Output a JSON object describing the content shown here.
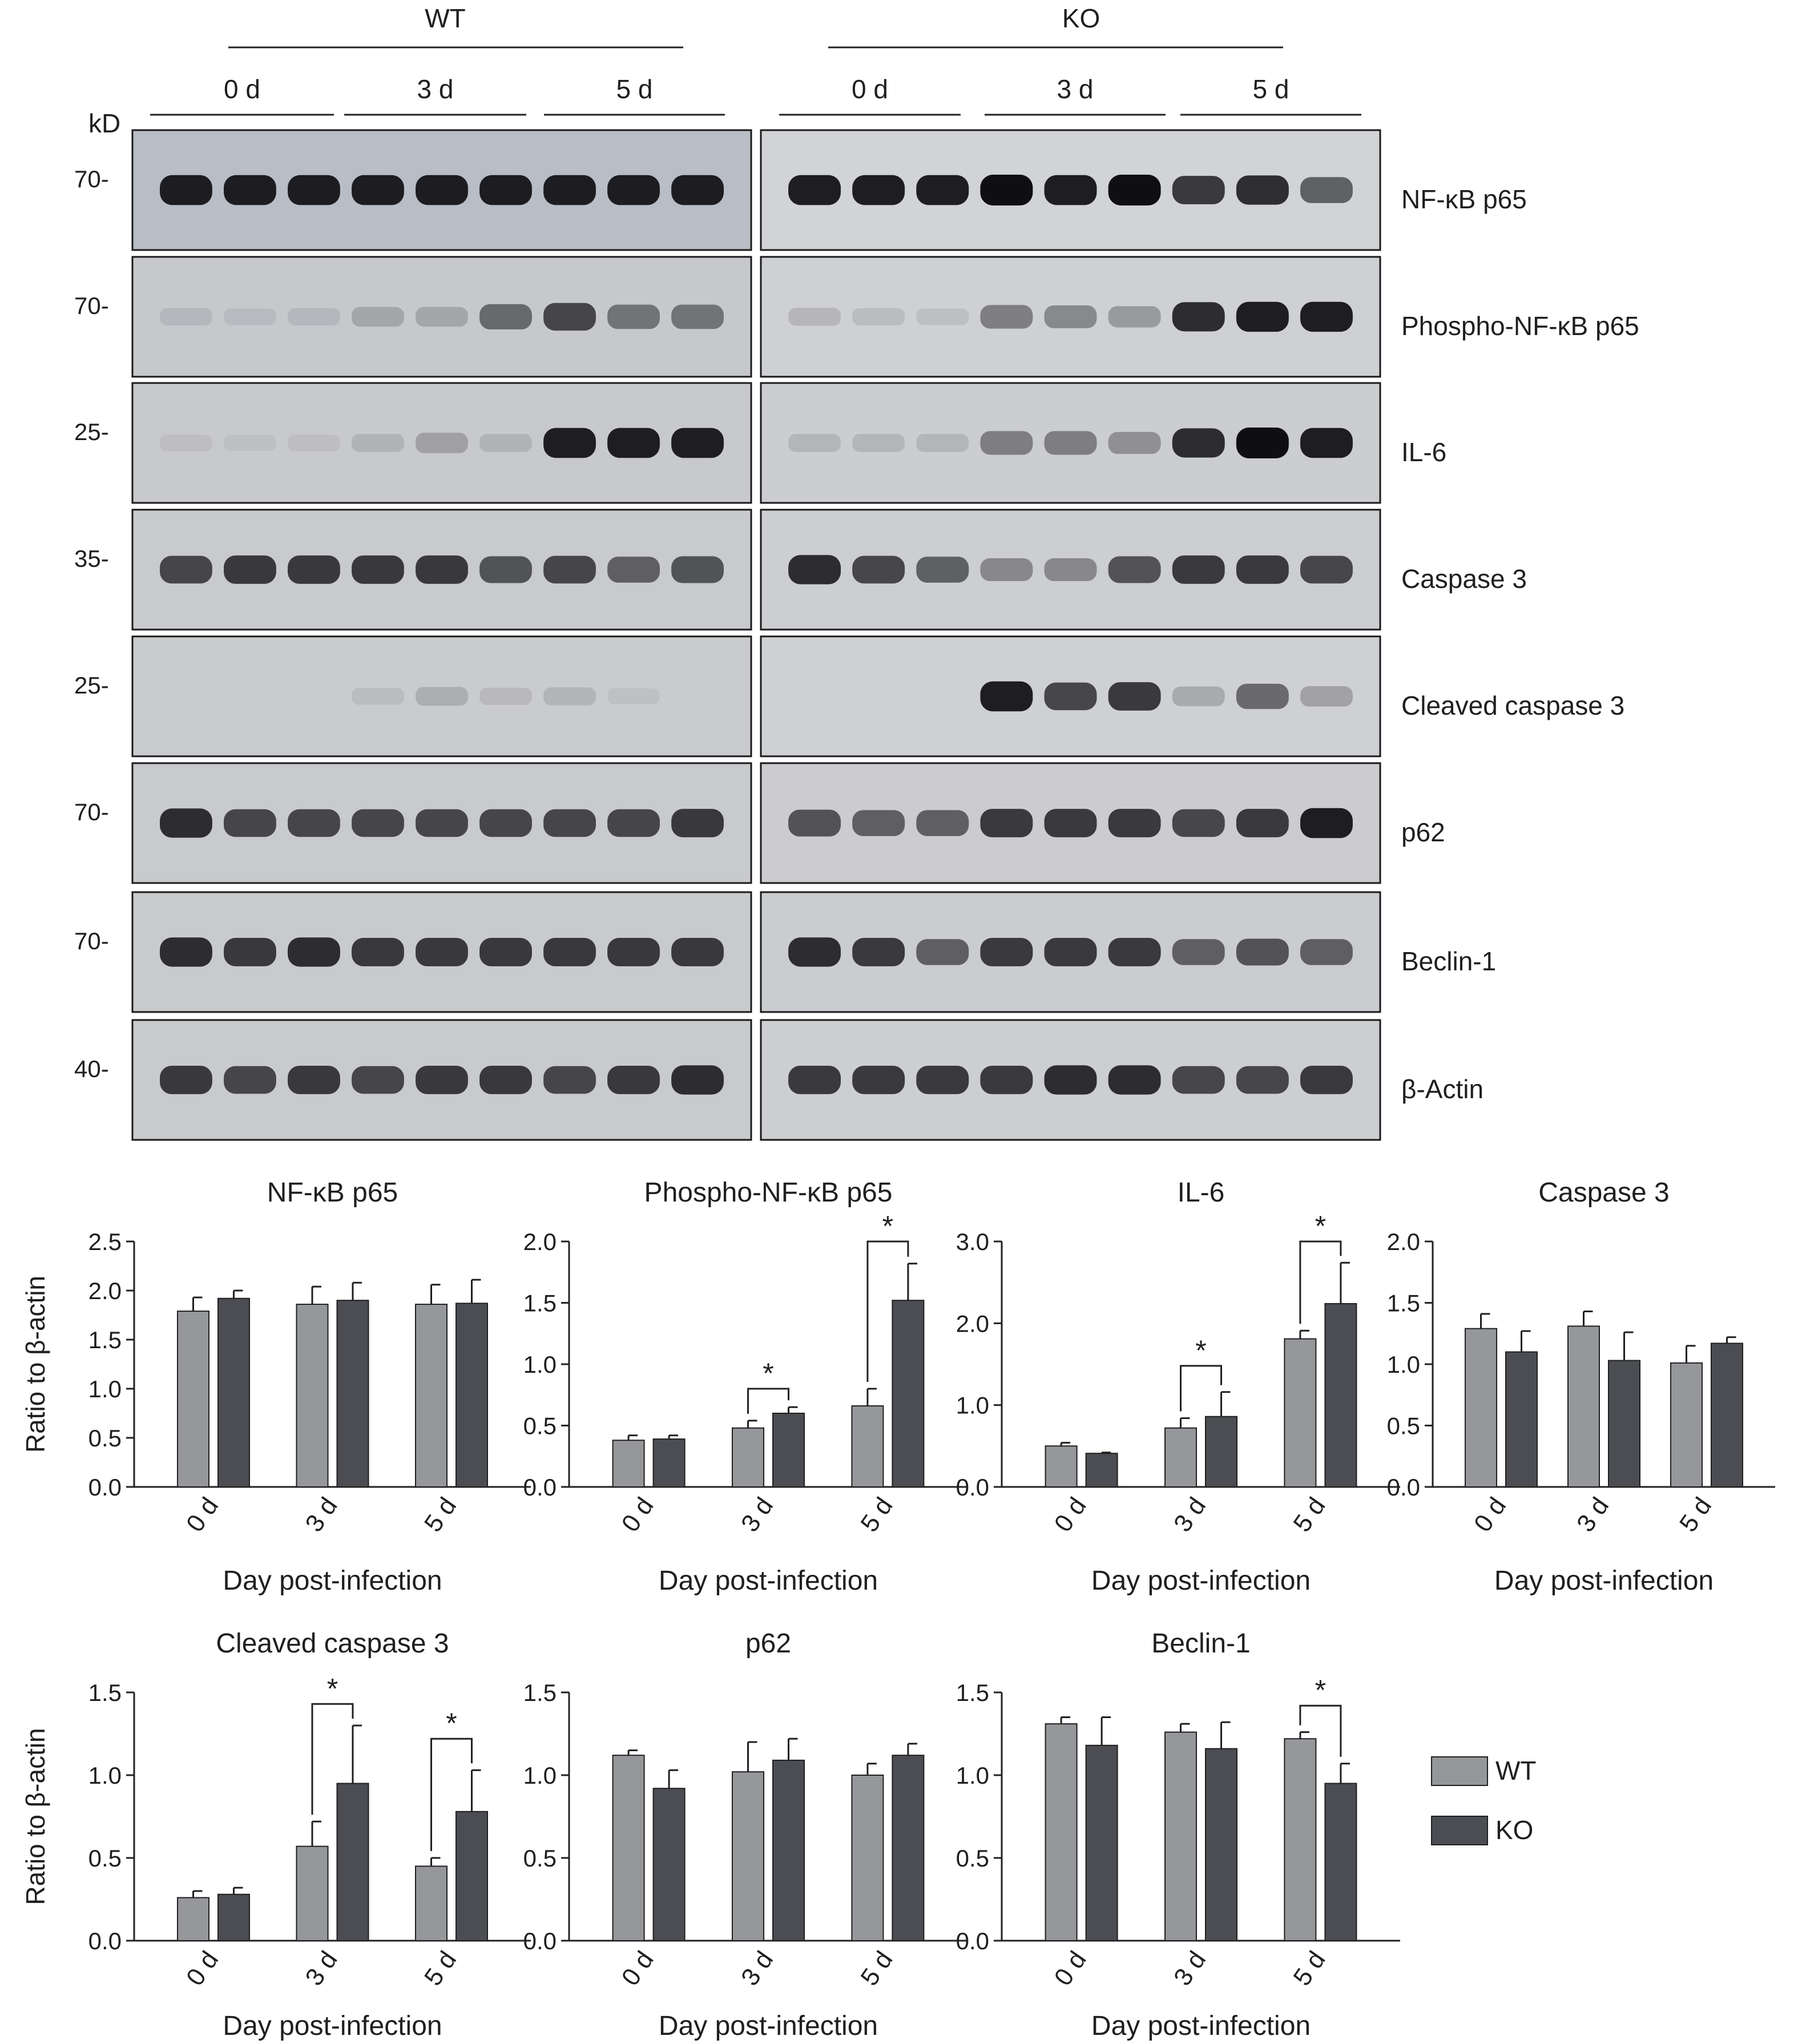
{
  "blot": {
    "groups": [
      "WT",
      "KO"
    ],
    "timepoints": [
      "0 d",
      "3 d",
      "5 d"
    ],
    "kd_unit": "kD",
    "rows": [
      {
        "protein": "NF-κB p65",
        "marker": "70-",
        "bg": "#b9bdc6",
        "bg_ko": "#d2d3d6",
        "wt": [
          0.95,
          0.95,
          0.95,
          0.95,
          0.95,
          0.95,
          0.95,
          0.95,
          0.95
        ],
        "ko": [
          0.95,
          0.95,
          0.95,
          1,
          0.95,
          1,
          0.85,
          0.9,
          0.7
        ]
      },
      {
        "protein": "Phospho-NF-κB p65",
        "marker": "70-",
        "bg": "#c6c8cc",
        "bg_ko": "#cfd0d3",
        "wt": [
          0.15,
          0.12,
          0.15,
          0.3,
          0.3,
          0.65,
          0.8,
          0.6,
          0.6
        ],
        "ko": [
          0.2,
          0.15,
          0.12,
          0.55,
          0.5,
          0.4,
          0.9,
          0.95,
          0.95
        ]
      },
      {
        "protein": "IL-6",
        "marker": "25-",
        "bg": "#c8c9cd",
        "bg_ko": "#cccdd0",
        "wt": [
          0.1,
          0.08,
          0.1,
          0.2,
          0.35,
          0.2,
          0.95,
          0.95,
          0.95
        ],
        "ko": [
          0.2,
          0.2,
          0.2,
          0.55,
          0.55,
          0.45,
          0.9,
          1,
          0.95
        ]
      },
      {
        "protein": "Caspase 3",
        "marker": "35-",
        "bg": "#c9cacd",
        "bg_ko": "#cdced1",
        "wt": [
          0.8,
          0.85,
          0.85,
          0.85,
          0.85,
          0.75,
          0.8,
          0.7,
          0.75
        ],
        "ko": [
          0.9,
          0.8,
          0.7,
          0.5,
          0.5,
          0.75,
          0.85,
          0.85,
          0.8
        ]
      },
      {
        "protein": "Cleaved caspase 3",
        "marker": "25-",
        "bg": "#cacbcf",
        "bg_ko": "#cfd0d3",
        "wt": [
          0,
          0,
          0,
          0.12,
          0.25,
          0.15,
          0.2,
          0.08,
          0
        ],
        "ko": [
          0,
          0,
          0,
          0.95,
          0.8,
          0.85,
          0.3,
          0.65,
          0.35
        ]
      },
      {
        "protein": "p62",
        "marker": "70-",
        "bg": "#c9cacd",
        "bg_ko": "#ccccd0",
        "wt": [
          0.9,
          0.8,
          0.8,
          0.8,
          0.8,
          0.8,
          0.8,
          0.8,
          0.85
        ],
        "ko": [
          0.75,
          0.7,
          0.7,
          0.85,
          0.85,
          0.85,
          0.8,
          0.85,
          0.95
        ]
      },
      {
        "protein": "Beclin-1",
        "marker": "70-",
        "bg": "#c9cacd",
        "bg_ko": "#cbccd0",
        "wt": [
          0.9,
          0.85,
          0.9,
          0.85,
          0.85,
          0.85,
          0.85,
          0.85,
          0.85
        ],
        "ko": [
          0.9,
          0.85,
          0.7,
          0.85,
          0.85,
          0.85,
          0.7,
          0.75,
          0.7
        ]
      },
      {
        "protein": "β-Actin",
        "marker": "40-",
        "bg": "#c9cacd",
        "bg_ko": "#cdced1",
        "wt": [
          0.85,
          0.8,
          0.85,
          0.8,
          0.85,
          0.85,
          0.8,
          0.85,
          0.9
        ],
        "ko": [
          0.85,
          0.85,
          0.85,
          0.85,
          0.9,
          0.9,
          0.8,
          0.8,
          0.85
        ]
      }
    ]
  },
  "legend": {
    "items": [
      {
        "label": "WT",
        "color": "#96979b"
      },
      {
        "label": "KO",
        "color": "#4c4d52"
      }
    ]
  },
  "chart_data": [
    {
      "type": "bar",
      "title": "NF-κB p65",
      "ylabel": "Ratio to β-actin",
      "xlabel": "Day post-infection",
      "categories": [
        "0 d",
        "3 d",
        "5 d"
      ],
      "ylim": [
        0,
        2.5
      ],
      "yticks": [
        "0.0",
        "0.5",
        "1.0",
        "1.5",
        "2.0",
        "2.5"
      ],
      "series": [
        {
          "name": "WT",
          "values": [
            1.79,
            1.86,
            1.86
          ],
          "errors": [
            0.14,
            0.18,
            0.2
          ]
        },
        {
          "name": "KO",
          "values": [
            1.92,
            1.9,
            1.87
          ],
          "errors": [
            0.08,
            0.18,
            0.24
          ]
        }
      ],
      "significance": []
    },
    {
      "type": "bar",
      "title": "Phospho-NF-κB p65",
      "ylabel": "",
      "xlabel": "Day post-infection",
      "categories": [
        "0 d",
        "3 d",
        "5 d"
      ],
      "ylim": [
        0,
        2.0
      ],
      "yticks": [
        "0.0",
        "0.5",
        "1.0",
        "1.5",
        "2.0"
      ],
      "series": [
        {
          "name": "WT",
          "values": [
            0.38,
            0.48,
            0.66
          ],
          "errors": [
            0.04,
            0.06,
            0.14
          ]
        },
        {
          "name": "KO",
          "values": [
            0.39,
            0.6,
            1.52
          ],
          "errors": [
            0.03,
            0.05,
            0.3
          ]
        }
      ],
      "significance": [
        {
          "category": 1,
          "label": "*",
          "y": 0.8
        },
        {
          "category": 2,
          "label": "*",
          "y": 2.0
        }
      ]
    },
    {
      "type": "bar",
      "title": "IL-6",
      "ylabel": "",
      "xlabel": "Day post-infection",
      "categories": [
        "0 d",
        "3 d",
        "5 d"
      ],
      "ylim": [
        0,
        3.0
      ],
      "yticks": [
        "0.0",
        "1.0",
        "2.0",
        "3.0"
      ],
      "series": [
        {
          "name": "WT",
          "values": [
            0.5,
            0.72,
            1.81
          ],
          "errors": [
            0.04,
            0.12,
            0.1
          ]
        },
        {
          "name": "KO",
          "values": [
            0.41,
            0.86,
            2.24
          ],
          "errors": [
            0.01,
            0.3,
            0.5
          ]
        }
      ],
      "significance": [
        {
          "category": 1,
          "label": "*",
          "y": 1.48
        },
        {
          "category": 2,
          "label": "*",
          "y": 3.0
        }
      ]
    },
    {
      "type": "bar",
      "title": "Caspase 3",
      "ylabel": "",
      "xlabel": "Day post-infection",
      "categories": [
        "0 d",
        "3 d",
        "5 d"
      ],
      "ylim": [
        0,
        2.0
      ],
      "yticks": [
        "0.0",
        "0.5",
        "1.0",
        "1.5",
        "2.0"
      ],
      "series": [
        {
          "name": "WT",
          "values": [
            1.29,
            1.31,
            1.01
          ],
          "errors": [
            0.12,
            0.12,
            0.14
          ]
        },
        {
          "name": "KO",
          "values": [
            1.1,
            1.03,
            1.17
          ],
          "errors": [
            0.17,
            0.23,
            0.05
          ]
        }
      ],
      "significance": []
    },
    {
      "type": "bar",
      "title": "Cleaved caspase 3",
      "ylabel": "Ratio to β-actin",
      "xlabel": "Day post-infection",
      "categories": [
        "0 d",
        "3 d",
        "5 d"
      ],
      "ylim": [
        0,
        1.5
      ],
      "yticks": [
        "0.0",
        "0.5",
        "1.0",
        "1.5"
      ],
      "series": [
        {
          "name": "WT",
          "values": [
            0.26,
            0.57,
            0.45
          ],
          "errors": [
            0.04,
            0.15,
            0.05
          ]
        },
        {
          "name": "KO",
          "values": [
            0.28,
            0.95,
            0.78
          ],
          "errors": [
            0.04,
            0.35,
            0.25
          ]
        }
      ],
      "significance": [
        {
          "category": 1,
          "label": "*",
          "y": 1.43
        },
        {
          "category": 2,
          "label": "*",
          "y": 1.22
        }
      ]
    },
    {
      "type": "bar",
      "title": "p62",
      "ylabel": "",
      "xlabel": "Day post-infection",
      "categories": [
        "0 d",
        "3 d",
        "5 d"
      ],
      "ylim": [
        0,
        1.5
      ],
      "yticks": [
        "0.0",
        "0.5",
        "1.0",
        "1.5"
      ],
      "series": [
        {
          "name": "WT",
          "values": [
            1.12,
            1.02,
            1.0
          ],
          "errors": [
            0.03,
            0.18,
            0.07
          ]
        },
        {
          "name": "KO",
          "values": [
            0.92,
            1.09,
            1.12
          ],
          "errors": [
            0.11,
            0.13,
            0.07
          ]
        }
      ],
      "significance": []
    },
    {
      "type": "bar",
      "title": "Beclin-1",
      "ylabel": "",
      "xlabel": "Day post-infection",
      "categories": [
        "0 d",
        "3 d",
        "5 d"
      ],
      "ylim": [
        0,
        1.5
      ],
      "yticks": [
        "0.0",
        "0.5",
        "1.0",
        "1.5"
      ],
      "series": [
        {
          "name": "WT",
          "values": [
            1.31,
            1.26,
            1.22
          ],
          "errors": [
            0.04,
            0.05,
            0.04
          ]
        },
        {
          "name": "KO",
          "values": [
            1.18,
            1.16,
            0.95
          ],
          "errors": [
            0.17,
            0.16,
            0.12
          ]
        }
      ],
      "significance": [
        {
          "category": 2,
          "label": "*",
          "y": 1.42
        }
      ]
    }
  ]
}
